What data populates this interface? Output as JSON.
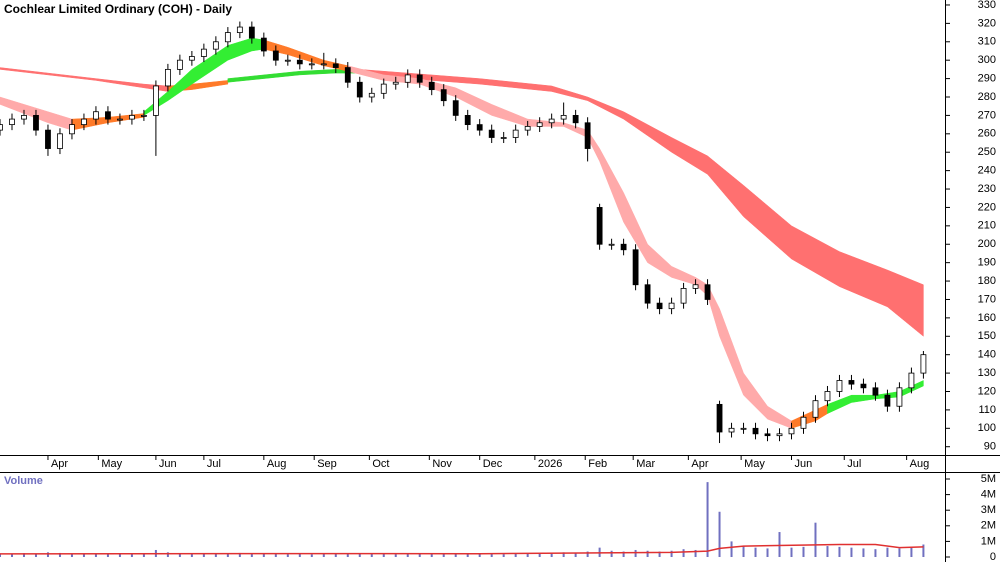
{
  "chart_data": {
    "type": "candlestick",
    "title": "Cochlear Limited Ordinary (COH) - Daily",
    "xlim": [
      0,
      394
    ],
    "xticks": [
      {
        "value": 20,
        "label": "Apr"
      },
      {
        "value": 41,
        "label": "May"
      },
      {
        "value": 65,
        "label": "Jun"
      },
      {
        "value": 85,
        "label": "Jul"
      },
      {
        "value": 110,
        "label": "Aug"
      },
      {
        "value": 131,
        "label": "Sep"
      },
      {
        "value": 154,
        "label": "Oct"
      },
      {
        "value": 179,
        "label": "Nov"
      },
      {
        "value": 200,
        "label": "Dec"
      },
      {
        "value": 223,
        "label": "2026"
      },
      {
        "value": 244,
        "label": "Feb"
      },
      {
        "value": 264,
        "label": "Mar"
      },
      {
        "value": 287,
        "label": "Apr"
      },
      {
        "value": 309,
        "label": "May"
      },
      {
        "value": 330,
        "label": "Jun"
      },
      {
        "value": 352,
        "label": "Jul"
      },
      {
        "value": 378,
        "label": "Aug"
      }
    ],
    "ylim": [
      85.5,
      332.7
    ],
    "yticks": [
      90,
      100,
      110,
      120,
      130,
      140,
      150,
      160,
      170,
      180,
      190,
      200,
      210,
      220,
      230,
      240,
      250,
      260,
      270,
      280,
      290,
      300,
      310,
      320,
      330
    ],
    "x": [
      0,
      5,
      10,
      15,
      20,
      25,
      30,
      35,
      40,
      45,
      50,
      55,
      60,
      65,
      70,
      75,
      80,
      85,
      90,
      95,
      100,
      105,
      110,
      115,
      120,
      125,
      130,
      135,
      140,
      145,
      150,
      155,
      160,
      165,
      170,
      175,
      180,
      185,
      190,
      195,
      200,
      205,
      210,
      215,
      220,
      225,
      230,
      235,
      240,
      245,
      250,
      255,
      260,
      265,
      270,
      275,
      280,
      285,
      290,
      295,
      300,
      305,
      310,
      315,
      320,
      325,
      330,
      335,
      340,
      345,
      350,
      355,
      360,
      365,
      370,
      375,
      380,
      385
    ],
    "open": [
      262,
      265,
      268,
      270,
      262,
      252,
      260,
      265,
      268,
      272,
      268,
      268,
      270,
      270,
      286,
      295,
      300,
      302,
      306,
      310,
      315,
      318,
      312,
      305,
      300,
      300,
      298,
      298,
      298,
      296,
      288,
      280,
      282,
      287,
      288,
      292,
      288,
      284,
      278,
      270,
      265,
      262,
      258,
      258,
      262,
      264,
      266,
      268,
      270,
      266,
      220,
      200,
      200,
      197,
      178,
      168,
      165,
      168,
      176,
      178,
      113,
      98,
      100,
      100,
      97,
      96,
      97,
      100,
      106,
      115,
      120,
      126,
      124,
      122,
      118,
      112,
      122,
      130
    ],
    "high": [
      268,
      271,
      273,
      273,
      265,
      263,
      268,
      271,
      275,
      275,
      271,
      273,
      273,
      289,
      298,
      303,
      305,
      309,
      313,
      318,
      321,
      321,
      315,
      308,
      303,
      303,
      301,
      304,
      301,
      299,
      291,
      285,
      290,
      291,
      295,
      295,
      291,
      287,
      281,
      273,
      268,
      265,
      261,
      265,
      267,
      269,
      271,
      277,
      273,
      269,
      222,
      203,
      203,
      200,
      181,
      171,
      171,
      179,
      181,
      181,
      115,
      103,
      103,
      103,
      100,
      100,
      103,
      109,
      118,
      123,
      129,
      129,
      127,
      125,
      121,
      125,
      133,
      142
    ],
    "low": [
      259,
      262,
      265,
      259,
      248,
      249,
      257,
      262,
      265,
      265,
      265,
      265,
      267,
      248,
      283,
      292,
      297,
      299,
      303,
      307,
      312,
      309,
      302,
      297,
      297,
      295,
      295,
      295,
      293,
      285,
      277,
      277,
      279,
      284,
      285,
      285,
      281,
      275,
      267,
      262,
      259,
      255,
      255,
      255,
      259,
      261,
      263,
      265,
      263,
      245,
      197,
      197,
      194,
      175,
      165,
      162,
      162,
      165,
      173,
      167,
      92,
      95,
      97,
      94,
      93,
      93,
      94,
      97,
      103,
      112,
      117,
      121,
      119,
      115,
      109,
      109,
      119,
      127
    ],
    "close": [
      265,
      268,
      270,
      262,
      252,
      260,
      265,
      268,
      272,
      268,
      268,
      270,
      270,
      286,
      295,
      300,
      302,
      306,
      310,
      315,
      318,
      312,
      305,
      300,
      300,
      298,
      298,
      298,
      296,
      288,
      280,
      282,
      287,
      288,
      292,
      288,
      284,
      278,
      270,
      265,
      262,
      258,
      258,
      262,
      264,
      266,
      268,
      270,
      266,
      252,
      200,
      200,
      197,
      178,
      168,
      165,
      168,
      176,
      178,
      170,
      98,
      100,
      100,
      97,
      96,
      97,
      100,
      106,
      115,
      120,
      126,
      124,
      122,
      118,
      112,
      122,
      130,
      140
    ],
    "ribbons": [
      {
        "color": "#ff7070",
        "x": [
          0,
          20,
          40,
          60,
          70
        ],
        "upper": [
          296,
          293,
          290,
          287,
          286
        ],
        "lower": [
          295,
          292,
          289,
          285,
          283
        ]
      },
      {
        "color": "#ff7a29",
        "x": [
          70,
          80,
          95
        ],
        "upper": [
          286,
          287,
          289
        ],
        "lower": [
          283,
          284,
          287
        ]
      },
      {
        "color": "#33dd33",
        "x": [
          95,
          110,
          125,
          140,
          150
        ],
        "upper": [
          290,
          292,
          294,
          295,
          295
        ],
        "lower": [
          288,
          290,
          292,
          293,
          293
        ]
      },
      {
        "color": "#ff7070",
        "x": [
          150,
          170,
          200,
          230,
          245,
          260,
          280,
          295,
          310,
          330,
          350,
          370,
          385
        ],
        "upper": [
          295,
          293,
          290,
          286,
          280,
          272,
          258,
          248,
          232,
          210,
          196,
          186,
          178
        ],
        "lower": [
          293,
          290,
          287,
          283,
          278,
          268,
          250,
          238,
          215,
          192,
          177,
          166,
          150
        ]
      },
      {
        "color": "#ffaaaa",
        "x": [
          0,
          10,
          20,
          30
        ],
        "upper": [
          280,
          276,
          272,
          268
        ],
        "lower": [
          276,
          271,
          266,
          262
        ]
      },
      {
        "color": "#ff7a29",
        "x": [
          30,
          45,
          60
        ],
        "upper": [
          268,
          269,
          271
        ],
        "lower": [
          262,
          266,
          269
        ]
      },
      {
        "color": "#33ee33",
        "x": [
          60,
          70,
          80,
          95,
          105,
          110
        ],
        "upper": [
          272,
          283,
          295,
          308,
          312,
          311
        ],
        "lower": [
          270,
          278,
          287,
          300,
          305,
          306
        ]
      },
      {
        "color": "#ff7a29",
        "x": [
          110,
          120,
          135,
          145
        ],
        "upper": [
          311,
          307,
          300,
          297
        ],
        "lower": [
          306,
          303,
          297,
          294
        ]
      },
      {
        "color": "#ffaaaa",
        "x": [
          145,
          160,
          175,
          190,
          205,
          220,
          235,
          245,
          250,
          260,
          270,
          280,
          290,
          295,
          300,
          310,
          320,
          330
        ],
        "upper": [
          297,
          292,
          290,
          285,
          276,
          268,
          266,
          262,
          252,
          228,
          200,
          188,
          182,
          178,
          165,
          130,
          112,
          104
        ],
        "lower": [
          294,
          289,
          287,
          280,
          270,
          264,
          264,
          258,
          245,
          212,
          190,
          182,
          178,
          172,
          150,
          118,
          105,
          100
        ]
      },
      {
        "color": "#ff7a29",
        "x": [
          330,
          340,
          345
        ],
        "upper": [
          104,
          110,
          113
        ],
        "lower": [
          100,
          104,
          108
        ]
      },
      {
        "color": "#33ee33",
        "x": [
          345,
          355,
          365,
          375,
          385
        ],
        "upper": [
          113,
          118,
          118,
          120,
          126
        ],
        "lower": [
          108,
          114,
          116,
          117,
          123
        ]
      }
    ],
    "volume": {
      "title": "Volume",
      "color": "#7070c0",
      "ylim": [
        0,
        5000000
      ],
      "yticks": [
        0,
        {
          "value": 1000000,
          "label": "1M"
        },
        {
          "value": 2000000,
          "label": "2M"
        },
        {
          "value": 3000000,
          "label": "3M"
        },
        {
          "value": 4000000,
          "label": "4M"
        },
        {
          "value": 5000000,
          "label": "5M"
        }
      ],
      "values": [
        220000,
        180000,
        250000,
        200000,
        300000,
        260000,
        200000,
        180000,
        220000,
        200000,
        190000,
        210000,
        200000,
        450000,
        300000,
        250000,
        230000,
        220000,
        200000,
        240000,
        260000,
        220000,
        200000,
        190000,
        180000,
        200000,
        170000,
        190000,
        200000,
        210000,
        230000,
        200000,
        190000,
        180000,
        200000,
        210000,
        220000,
        250000,
        230000,
        210000,
        200000,
        190000,
        180000,
        200000,
        210000,
        220000,
        250000,
        300000,
        280000,
        350000,
        600000,
        400000,
        350000,
        450000,
        400000,
        350000,
        400000,
        500000,
        450000,
        4800000,
        2900000,
        1000000,
        700000,
        600000,
        550000,
        1600000,
        600000,
        650000,
        2200000,
        700000,
        650000,
        600000,
        550000,
        500000,
        600000,
        550000,
        600000,
        800000
      ],
      "ma": {
        "color": "#e03030",
        "x": [
          0,
          100,
          200,
          280,
          295,
          300,
          310,
          350,
          365,
          375,
          385
        ],
        "values": [
          200000,
          220000,
          210000,
          300000,
          380000,
          550000,
          700000,
          800000,
          800000,
          600000,
          650000
        ]
      }
    }
  }
}
